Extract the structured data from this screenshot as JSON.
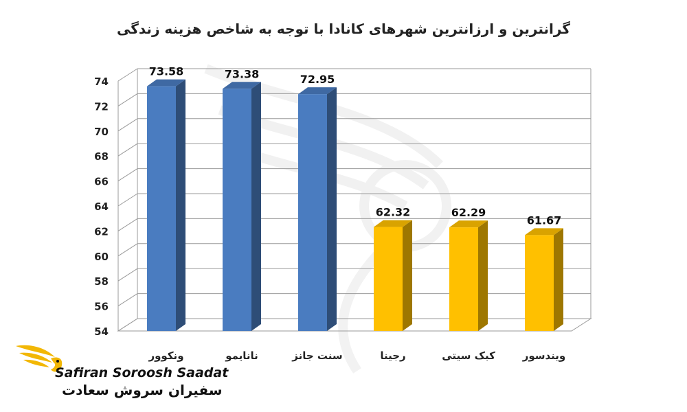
{
  "chart_data": {
    "type": "bar",
    "title": "گرانترین و ارزانترین شهرهای کانادا با توجه به شاخص هزینه زندگی",
    "categories": [
      "ونکوور",
      "نانایمو",
      "سنت جانز",
      "رجینا",
      "کبک سیتی",
      "ویندسور"
    ],
    "values": [
      73.58,
      73.38,
      72.95,
      62.32,
      62.29,
      61.67
    ],
    "data_labels": [
      "73.58",
      "73.38",
      "72.95",
      "62.32",
      "62.29",
      "61.67"
    ],
    "bar_colors": [
      "#4A7CC0",
      "#4A7CC0",
      "#4A7CC0",
      "#FFC000",
      "#FFC000",
      "#FFC000"
    ],
    "ylim": [
      54,
      74
    ],
    "yticks": [
      "54",
      "56",
      "58",
      "60",
      "62",
      "64",
      "66",
      "68",
      "70",
      "72",
      "74"
    ],
    "xlabel": "",
    "ylabel": "",
    "grid": true,
    "style": "3d-column"
  },
  "logo": {
    "text_latin": "Safiran Soroosh Saadat",
    "text_farsi": "سفیران سروش سعادت",
    "accent_color": "#F2B705"
  }
}
